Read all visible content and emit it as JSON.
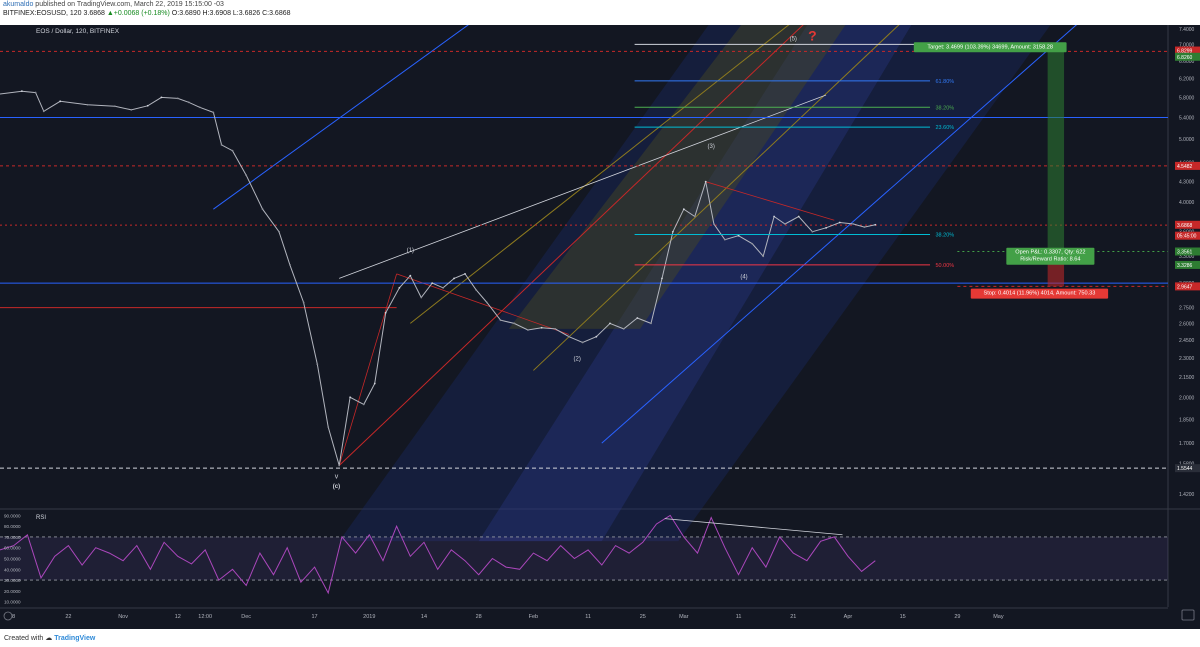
{
  "header": {
    "line1_user": "akumaldo",
    "line1_rest": " published on TradingView.com, March 22, 2019 15:15:00 -03",
    "line2_symbol": "BITFINEX:EOSUSD, 120  3.6868",
    "line2_change": " ▲+0.0068 (+0.18%)",
    "line2_ohlc": " O:3.6890 H:3.6908 L:3.6826 C:3.6868"
  },
  "footer": {
    "created_with": "Created with",
    "brand": "TradingView"
  },
  "chart_data": {
    "type": "line",
    "title": "EOS / Dollar, 120, BITFINEX",
    "price_axis": [
      "7.4000",
      "7.0000",
      "6.6000",
      "6.2000",
      "5.8000",
      "5.4000",
      "5.0000",
      "4.6000",
      "4.3000",
      "4.0000",
      "3.6000",
      "3.3000",
      "3.0000",
      "2.7500",
      "2.6000",
      "2.4500",
      "2.3000",
      "2.1500",
      "2.0000",
      "1.8500",
      "1.7000",
      "1.5800",
      "1.4200"
    ],
    "ylim": [
      1.35,
      7.5
    ],
    "x_labels": [
      {
        "t": "8",
        "x": 0.5
      },
      {
        "t": "22",
        "x": 2.5
      },
      {
        "t": "Nov",
        "x": 4.5
      },
      {
        "t": "12",
        "x": 6.5
      },
      {
        "t": "12:00",
        "x": 7.5
      },
      {
        "t": "Dec",
        "x": 9.0
      },
      {
        "t": "17",
        "x": 11.5
      },
      {
        "t": "2019",
        "x": 13.5
      },
      {
        "t": "14",
        "x": 15.5
      },
      {
        "t": "28",
        "x": 17.5
      },
      {
        "t": "Feb",
        "x": 19.5
      },
      {
        "t": "11",
        "x": 21.5
      },
      {
        "t": "25",
        "x": 23.5
      },
      {
        "t": "Mar",
        "x": 25.0
      },
      {
        "t": "11",
        "x": 27.0
      },
      {
        "t": "21",
        "x": 29.0
      },
      {
        "t": "Apr",
        "x": 31.0
      },
      {
        "t": "15",
        "x": 33.0
      },
      {
        "t": "29",
        "x": 35.0
      },
      {
        "t": "May",
        "x": 36.5
      }
    ],
    "xlim": [
      0,
      42.7
    ],
    "price_series": [
      [
        0.0,
        5.87
      ],
      [
        0.8,
        5.93
      ],
      [
        1.3,
        5.9
      ],
      [
        1.6,
        5.52
      ],
      [
        2.2,
        5.72
      ],
      [
        3.2,
        5.65
      ],
      [
        4.2,
        5.62
      ],
      [
        4.8,
        5.55
      ],
      [
        5.4,
        5.63
      ],
      [
        5.9,
        5.8
      ],
      [
        6.5,
        5.78
      ],
      [
        6.9,
        5.7
      ],
      [
        7.3,
        5.6
      ],
      [
        7.8,
        5.5
      ],
      [
        8.1,
        4.9
      ],
      [
        8.5,
        4.8
      ],
      [
        9.0,
        4.4
      ],
      [
        9.6,
        3.9
      ],
      [
        10.2,
        3.6
      ],
      [
        10.6,
        3.2
      ],
      [
        11.1,
        2.8
      ],
      [
        11.6,
        2.25
      ],
      [
        12.0,
        1.8
      ],
      [
        12.4,
        1.57
      ],
      [
        12.8,
        2.0
      ],
      [
        13.3,
        1.95
      ],
      [
        13.7,
        2.1
      ],
      [
        14.1,
        2.7
      ],
      [
        14.6,
        2.95
      ],
      [
        15.0,
        3.08
      ],
      [
        15.4,
        2.85
      ],
      [
        15.8,
        3.0
      ],
      [
        16.2,
        2.95
      ],
      [
        16.6,
        3.05
      ],
      [
        17.0,
        3.1
      ],
      [
        17.4,
        2.93
      ],
      [
        17.8,
        2.8
      ],
      [
        18.3,
        2.63
      ],
      [
        18.8,
        2.6
      ],
      [
        19.3,
        2.54
      ],
      [
        19.8,
        2.56
      ],
      [
        20.3,
        2.55
      ],
      [
        20.8,
        2.48
      ],
      [
        21.3,
        2.43
      ],
      [
        21.8,
        2.48
      ],
      [
        22.3,
        2.6
      ],
      [
        22.8,
        2.55
      ],
      [
        23.3,
        2.65
      ],
      [
        23.8,
        2.6
      ],
      [
        24.2,
        3.05
      ],
      [
        24.6,
        3.6
      ],
      [
        25.0,
        3.9
      ],
      [
        25.4,
        3.8
      ],
      [
        25.8,
        4.3
      ],
      [
        26.1,
        3.7
      ],
      [
        26.5,
        3.5
      ],
      [
        27.0,
        3.55
      ],
      [
        27.5,
        3.45
      ],
      [
        27.9,
        3.3
      ],
      [
        28.3,
        3.8
      ],
      [
        28.7,
        3.7
      ],
      [
        29.2,
        3.8
      ],
      [
        29.7,
        3.6
      ],
      [
        30.2,
        3.65
      ],
      [
        30.7,
        3.72
      ],
      [
        31.2,
        3.7
      ],
      [
        31.6,
        3.66
      ],
      [
        32.0,
        3.69
      ]
    ],
    "fib_levels": [
      {
        "label": "100.00%",
        "price": 7.0,
        "color": "#d1d4dc"
      },
      {
        "label": "61.80%",
        "price": 6.15,
        "color": "#3179f5"
      },
      {
        "label": "38.20%",
        "price": 5.6,
        "color": "#4caf50"
      },
      {
        "label": "23.60%",
        "price": 5.22,
        "color": "#00bcd4"
      },
      {
        "label": "38.20%",
        "price": 3.565,
        "color": "#00bcd4"
      },
      {
        "label": "50.00%",
        "price": 3.2,
        "color": "#f23645"
      }
    ],
    "wave_labels": [
      "(1)",
      "(2)",
      "(3)",
      "(4)",
      "(5)",
      "(c)"
    ],
    "question_mark": "?",
    "v_mark": "v",
    "price_tags": [
      {
        "text": "6.8299",
        "price": 6.85,
        "color": "#c62828"
      },
      {
        "text": "6.8260",
        "price": 6.7,
        "color": "#2e7d32"
      },
      {
        "text": "4.5482",
        "price": 4.548,
        "color": "#c62828"
      },
      {
        "text": "3.6868",
        "price": 3.69,
        "color": "#c62828"
      },
      {
        "text": "05:45:00",
        "price": 3.55,
        "color": "#c62828"
      },
      {
        "text": "3.3561",
        "price": 3.356,
        "color": "#2e7d32"
      },
      {
        "text": "3.3286",
        "price": 3.2,
        "color": "#2e7d32"
      },
      {
        "text": "2.9647",
        "price": 2.965,
        "color": "#c62828"
      },
      {
        "text": "1.5544",
        "price": 1.555,
        "color": "#2a2e39"
      }
    ],
    "target_label": "Target: 3.4699 (103.39%) 34699, Amount: 3158.28",
    "pnl_label_line1": "Open P&L: 0.3307, Qty: 622",
    "pnl_label_line2": "Risk/Reward Ratio: 8.64",
    "stop_label": "Stop: 0.4014 (11.96%) 4014, Amount: 750.33",
    "rsi": {
      "title": "RSI",
      "axis": [
        "90.0000",
        "80.0000",
        "70.0000",
        "60.0000",
        "50.0000",
        "40.0000",
        "30.0000",
        "20.0000",
        "10.0000"
      ],
      "ylim": [
        5,
        95
      ],
      "upper": 70,
      "lower": 30,
      "series": [
        [
          0.0,
          58
        ],
        [
          0.5,
          62
        ],
        [
          1.0,
          72
        ],
        [
          1.5,
          32
        ],
        [
          2.0,
          52
        ],
        [
          2.5,
          62
        ],
        [
          3.0,
          44
        ],
        [
          3.5,
          60
        ],
        [
          4.0,
          55
        ],
        [
          4.5,
          48
        ],
        [
          5.0,
          62
        ],
        [
          5.5,
          40
        ],
        [
          6.0,
          65
        ],
        [
          6.5,
          52
        ],
        [
          7.0,
          45
        ],
        [
          7.5,
          58
        ],
        [
          8.0,
          30
        ],
        [
          8.5,
          40
        ],
        [
          9.0,
          25
        ],
        [
          9.5,
          55
        ],
        [
          10.0,
          35
        ],
        [
          10.5,
          60
        ],
        [
          11.0,
          28
        ],
        [
          11.5,
          42
        ],
        [
          12.0,
          18
        ],
        [
          12.5,
          70
        ],
        [
          13.0,
          55
        ],
        [
          13.5,
          72
        ],
        [
          14.0,
          48
        ],
        [
          14.5,
          80
        ],
        [
          15.0,
          52
        ],
        [
          15.5,
          65
        ],
        [
          16.0,
          40
        ],
        [
          16.5,
          58
        ],
        [
          17.0,
          48
        ],
        [
          17.5,
          35
        ],
        [
          18.0,
          50
        ],
        [
          18.5,
          42
        ],
        [
          19.0,
          40
        ],
        [
          19.5,
          55
        ],
        [
          20.0,
          48
        ],
        [
          20.5,
          62
        ],
        [
          21.0,
          50
        ],
        [
          21.5,
          58
        ],
        [
          22.0,
          44
        ],
        [
          22.5,
          62
        ],
        [
          23.0,
          55
        ],
        [
          23.5,
          65
        ],
        [
          24.0,
          82
        ],
        [
          24.5,
          90
        ],
        [
          25.0,
          70
        ],
        [
          25.5,
          55
        ],
        [
          26.0,
          88
        ],
        [
          26.5,
          60
        ],
        [
          27.0,
          35
        ],
        [
          27.5,
          60
        ],
        [
          28.0,
          42
        ],
        [
          28.5,
          70
        ],
        [
          29.0,
          55
        ],
        [
          29.5,
          48
        ],
        [
          30.0,
          66
        ],
        [
          30.5,
          70
        ],
        [
          31.0,
          52
        ],
        [
          31.5,
          38
        ],
        [
          32.0,
          48
        ]
      ]
    }
  }
}
